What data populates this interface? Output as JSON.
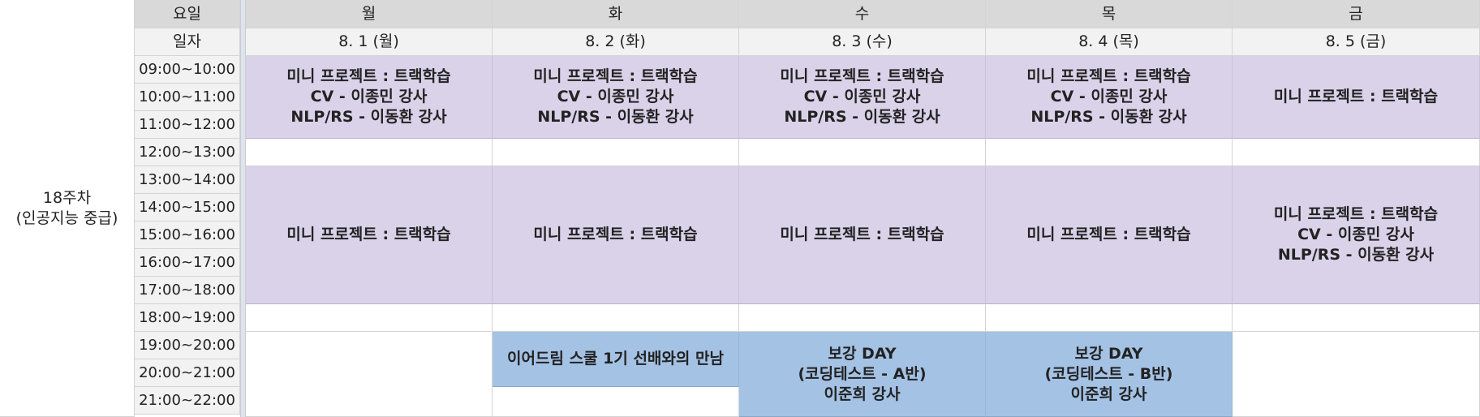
{
  "header": {
    "day_label": "요일",
    "date_label": "일자",
    "days": [
      "월",
      "화",
      "수",
      "목",
      "금"
    ],
    "dates": [
      "8. 1 (월)",
      "8. 2 (화)",
      "8. 3 (수)",
      "8. 4 (목)",
      "8. 5 (금)"
    ]
  },
  "week_label": "18주차\n(인공지능 중급)",
  "times": [
    "09:00~10:00",
    "10:00~11:00",
    "11:00~12:00",
    "12:00~13:00",
    "13:00~14:00",
    "14:00~15:00",
    "15:00~16:00",
    "16:00~17:00",
    "17:00~18:00",
    "18:00~19:00",
    "19:00~20:00",
    "20:00~21:00",
    "21:00~22:00"
  ],
  "morning": [
    "미니 프로젝트 : 트랙학습\nCV - 이종민 강사\nNLP/RS - 이동환 강사",
    "미니 프로젝트 : 트랙학습\nCV - 이종민 강사\nNLP/RS - 이동환 강사",
    "미니 프로젝트 : 트랙학습\nCV - 이종민 강사\nNLP/RS - 이동환 강사",
    "미니 프로젝트 : 트랙학습\nCV - 이종민 강사\nNLP/RS - 이동환 강사",
    "미니 프로젝트 : 트랙학습"
  ],
  "afternoon": [
    "미니 프로젝트 : 트랙학습",
    "미니 프로젝트 : 트랙학습",
    "미니 프로젝트 : 트랙학습",
    "미니 프로젝트 : 트랙학습",
    "미니 프로젝트 : 트랙학습\nCV - 이종민 강사\nNLP/RS - 이동환 강사"
  ],
  "evening": {
    "tue": "이어드림 스쿨 1기 선배와의 만남",
    "wed": "보강 DAY\n(코딩테스트 - A반)\n이준희 강사",
    "thu": "보강 DAY\n(코딩테스트 - B반)\n이준희 강사"
  },
  "colors": {
    "header_gray": "#d9d9d9",
    "date_gray": "#f2f2f2",
    "session_purple": "#d9d2e9",
    "event_blue": "#a4c2e4"
  }
}
